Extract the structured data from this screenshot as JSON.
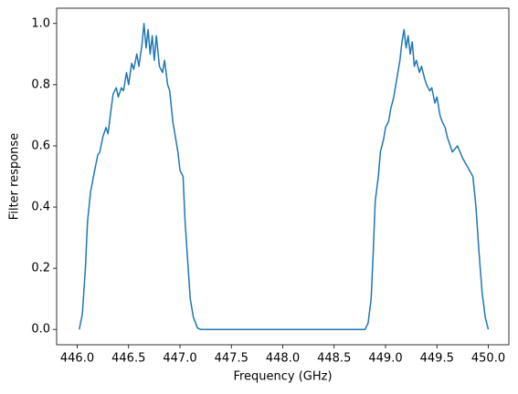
{
  "chart_data": {
    "type": "line",
    "x_label": "Frequency (GHz)",
    "y_label": "Filter response",
    "xlim": [
      445.8,
      450.2
    ],
    "ylim": [
      -0.05,
      1.05
    ],
    "xticks": [
      {
        "value": 446,
        "label": "446.0"
      },
      446.5,
      {
        "value": 447,
        "label": "447.0"
      },
      447.5,
      {
        "value": 448,
        "label": "448.0"
      },
      448.5,
      {
        "value": 449,
        "label": "449.0"
      },
      449.5,
      {
        "value": 450,
        "label": "450.0"
      }
    ],
    "yticks": [
      {
        "value": 0,
        "label": "0.0"
      },
      0.2,
      0.4,
      0.6,
      0.8,
      {
        "value": 1,
        "label": "1.0"
      }
    ],
    "x": [
      446.02,
      446.05,
      446.08,
      446.1,
      446.13,
      446.17,
      446.2,
      446.22,
      446.25,
      446.28,
      446.3,
      446.33,
      446.35,
      446.38,
      446.4,
      446.43,
      446.45,
      446.48,
      446.5,
      446.53,
      446.55,
      446.58,
      446.6,
      446.63,
      446.65,
      446.67,
      446.69,
      446.71,
      446.73,
      446.75,
      446.77,
      446.8,
      446.83,
      446.85,
      446.88,
      446.9,
      446.93,
      446.95,
      446.98,
      447.0,
      447.03,
      447.05,
      447.08,
      447.1,
      447.13,
      447.17,
      447.2,
      448.8,
      448.83,
      448.86,
      448.88,
      448.9,
      448.93,
      448.95,
      448.98,
      449.0,
      449.03,
      449.05,
      449.08,
      449.1,
      449.12,
      449.14,
      449.16,
      449.18,
      449.2,
      449.22,
      449.24,
      449.26,
      449.28,
      449.3,
      449.33,
      449.35,
      449.38,
      449.4,
      449.43,
      449.45,
      449.48,
      449.5,
      449.53,
      449.55,
      449.58,
      449.6,
      449.63,
      449.65,
      449.7,
      449.75,
      449.8,
      449.85,
      449.88,
      449.91,
      449.94,
      449.97,
      450.0
    ],
    "series": [
      {
        "color": "#1f77b4",
        "values": [
          0.0,
          0.05,
          0.2,
          0.35,
          0.45,
          0.52,
          0.57,
          0.58,
          0.63,
          0.66,
          0.64,
          0.72,
          0.77,
          0.79,
          0.76,
          0.79,
          0.78,
          0.84,
          0.8,
          0.87,
          0.85,
          0.9,
          0.86,
          0.93,
          1.0,
          0.92,
          0.98,
          0.9,
          0.96,
          0.88,
          0.96,
          0.86,
          0.84,
          0.88,
          0.8,
          0.78,
          0.68,
          0.64,
          0.58,
          0.52,
          0.5,
          0.35,
          0.2,
          0.1,
          0.04,
          0.005,
          0.0,
          0.0,
          0.02,
          0.1,
          0.25,
          0.42,
          0.5,
          0.58,
          0.62,
          0.66,
          0.68,
          0.72,
          0.76,
          0.8,
          0.84,
          0.88,
          0.94,
          0.98,
          0.92,
          0.96,
          0.9,
          0.94,
          0.86,
          0.88,
          0.84,
          0.86,
          0.82,
          0.8,
          0.78,
          0.79,
          0.74,
          0.76,
          0.7,
          0.68,
          0.66,
          0.63,
          0.6,
          0.58,
          0.6,
          0.56,
          0.53,
          0.5,
          0.4,
          0.25,
          0.12,
          0.04,
          0.0
        ]
      }
    ]
  }
}
